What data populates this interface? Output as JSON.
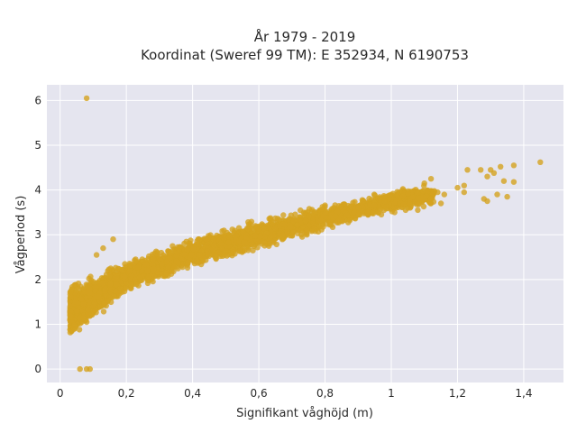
{
  "chart_data": {
    "type": "scatter",
    "title_lines": [
      "År 1979 - 2019",
      "Koordinat (Sweref 99 TM): E 352934, N 6190753"
    ],
    "xlabel": "Signifikant våghöjd (m)",
    "ylabel": "Vågperiod (s)",
    "xlim": [
      -0.04,
      1.52
    ],
    "ylim": [
      -0.3,
      6.35
    ],
    "x_ticks": [
      0,
      0.2,
      0.4,
      0.6,
      0.8,
      1,
      1.2,
      1.4
    ],
    "x_tick_labels": [
      "0",
      "0,2",
      "0,4",
      "0,6",
      "0,8",
      "1",
      "1,2",
      "1,4"
    ],
    "y_ticks": [
      0,
      1,
      2,
      3,
      4,
      5,
      6
    ],
    "y_tick_labels": [
      "0",
      "1",
      "2",
      "3",
      "4",
      "5",
      "6"
    ],
    "grid": true,
    "marker_color": "#d4a31f",
    "plot_background": "#e5e5ef",
    "trend": [
      [
        0.02,
        1.25
      ],
      [
        0.1,
        1.6
      ],
      [
        0.2,
        2.05
      ],
      [
        0.4,
        2.6
      ],
      [
        0.6,
        3.0
      ],
      [
        0.8,
        3.38
      ],
      [
        1.0,
        3.75
      ],
      [
        1.15,
        3.95
      ]
    ],
    "outliers": [
      [
        0.08,
        6.05
      ],
      [
        0.06,
        0.0
      ],
      [
        0.08,
        0.0
      ],
      [
        0.09,
        0.0
      ],
      [
        0.08,
        1.05
      ],
      [
        1.45,
        4.62
      ],
      [
        1.37,
        4.55
      ],
      [
        1.33,
        4.52
      ],
      [
        1.3,
        4.45
      ],
      [
        1.27,
        4.45
      ],
      [
        1.23,
        4.45
      ],
      [
        1.31,
        4.38
      ],
      [
        1.29,
        4.3
      ],
      [
        1.34,
        4.2
      ],
      [
        1.37,
        4.18
      ],
      [
        1.32,
        3.9
      ],
      [
        1.35,
        3.85
      ],
      [
        1.28,
        3.8
      ],
      [
        1.29,
        3.75
      ],
      [
        1.22,
        3.95
      ],
      [
        1.2,
        4.05
      ],
      [
        1.22,
        4.1
      ],
      [
        1.12,
        4.25
      ],
      [
        1.1,
        4.15
      ],
      [
        1.14,
        3.95
      ],
      [
        1.16,
        3.9
      ],
      [
        1.12,
        3.8
      ],
      [
        1.15,
        3.7
      ],
      [
        1.05,
        3.6
      ],
      [
        1.01,
        3.5
      ],
      [
        0.97,
        3.45
      ],
      [
        1.08,
        3.55
      ],
      [
        0.13,
        2.7
      ],
      [
        0.16,
        2.9
      ],
      [
        0.11,
        2.55
      ],
      [
        0.05,
        1.3
      ],
      [
        0.07,
        1.45
      ],
      [
        0.03,
        1.2
      ]
    ]
  }
}
